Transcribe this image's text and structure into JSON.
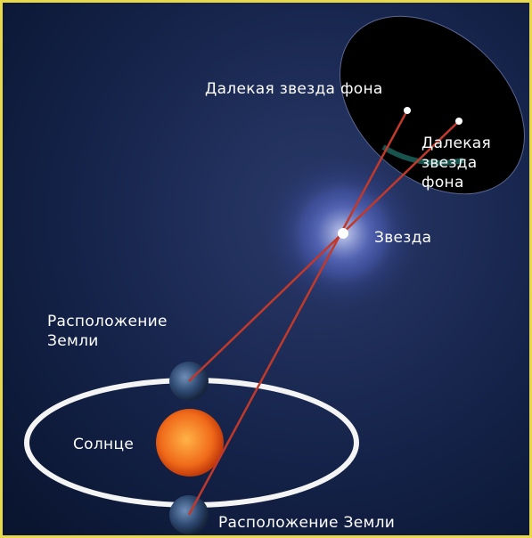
{
  "labels": {
    "far_star_top": "Далекая звезда фона",
    "far_star_right": "Далекая звезда фона",
    "star": "Звезда",
    "earth_position_top": "Расположение Земли",
    "sun": "Солнце",
    "earth_position_bottom": "Расположение Земли"
  }
}
